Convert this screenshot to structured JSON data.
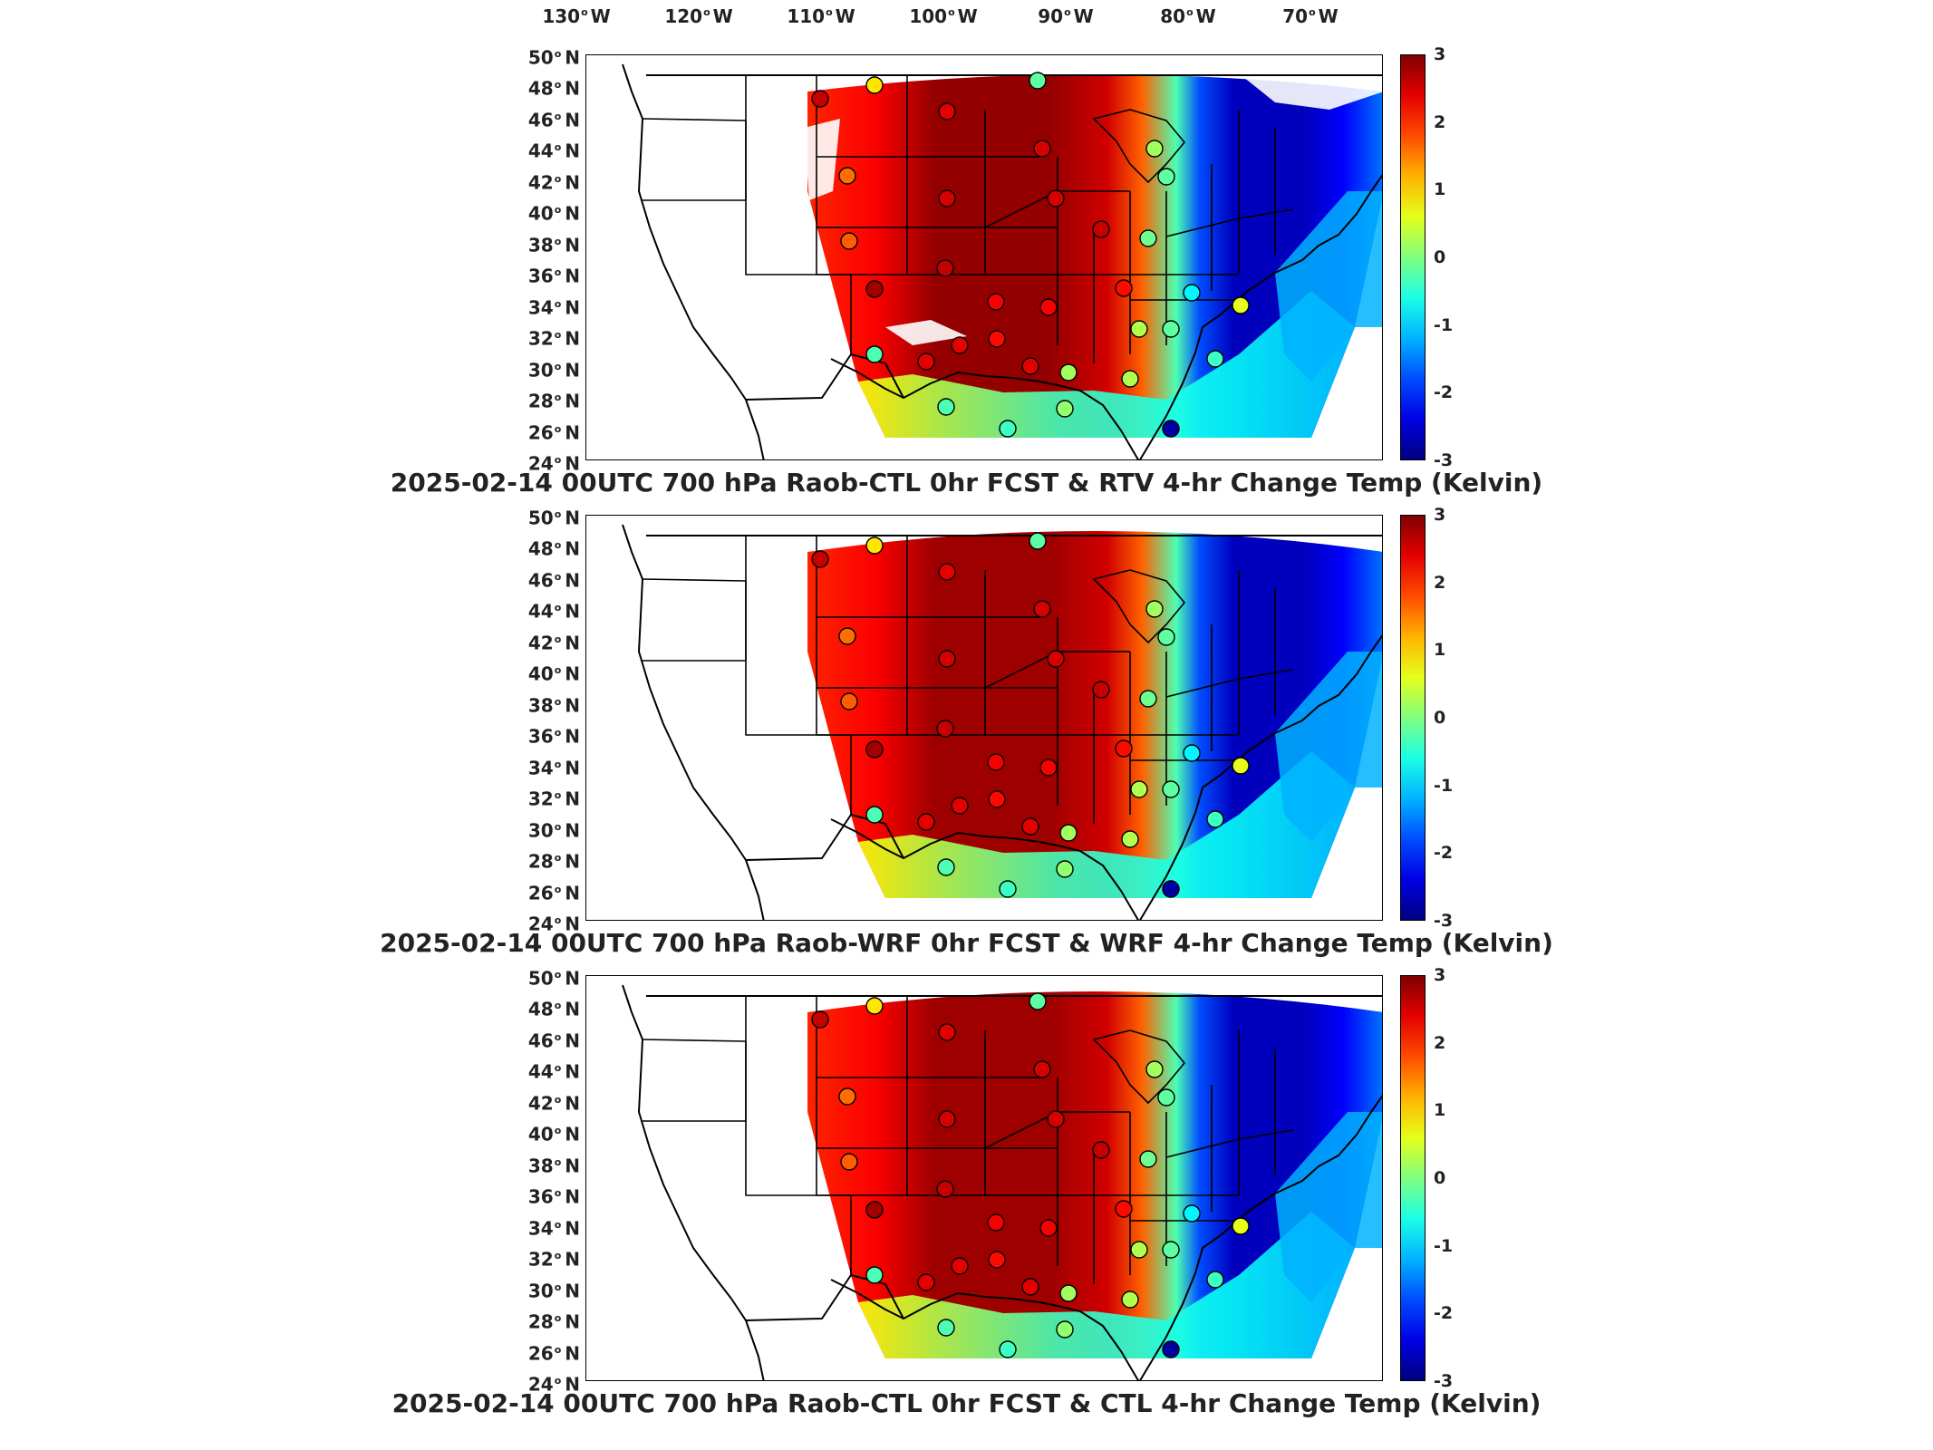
{
  "longitude_labels": [
    "130",
    "120",
    "110",
    "100",
    "90",
    "80",
    "70"
  ],
  "longitude_suffix": "W",
  "latitude_labels": [
    "50",
    "48",
    "46",
    "44",
    "42",
    "40",
    "38",
    "36",
    "34",
    "32",
    "30",
    "28",
    "26",
    "24"
  ],
  "latitude_suffix": "N",
  "colorbar": {
    "ticks": [
      "3",
      "2",
      "1",
      "0",
      "-1",
      "-2",
      "-3"
    ],
    "min": -3,
    "max": 3,
    "colormap": "jet"
  },
  "panels": [
    {
      "title": "2025-02-14 00UTC 700 hPa Raob-CTL 0hr FCST & RTV 4-hr Change Temp (Kelvin)"
    },
    {
      "title": "2025-02-14 00UTC 700 hPa Raob-WRF 0hr FCST & WRF 4-hr Change Temp (Kelvin)"
    },
    {
      "title": "2025-02-14 00UTC 700 hPa Raob-CTL 0hr FCST & CTL 4-hr Change Temp (Kelvin)"
    }
  ]
}
